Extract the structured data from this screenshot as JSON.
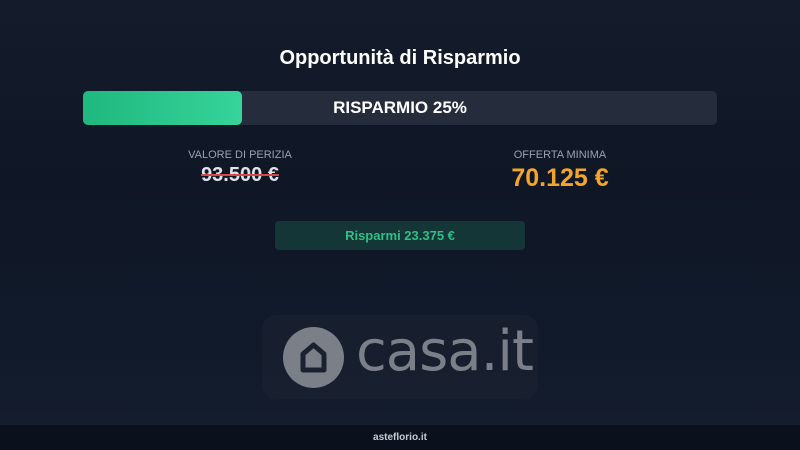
{
  "title": "Opportunità di Risparmio",
  "progress": {
    "label": "RISPARMIO 25%",
    "percent": 25,
    "color": "#2ecc8f"
  },
  "appraisal": {
    "label": "VALORE DI PERIZIA",
    "value": "93.500 €"
  },
  "minimum_offer": {
    "label": "OFFERTA MINIMA",
    "value": "70.125 €",
    "color": "#f2a52a"
  },
  "savings": {
    "label": "Risparmi 23.375 €"
  },
  "logo": {
    "text": "casa.it",
    "icon": "house-icon"
  },
  "footer": {
    "text": "asteflorio.it"
  }
}
